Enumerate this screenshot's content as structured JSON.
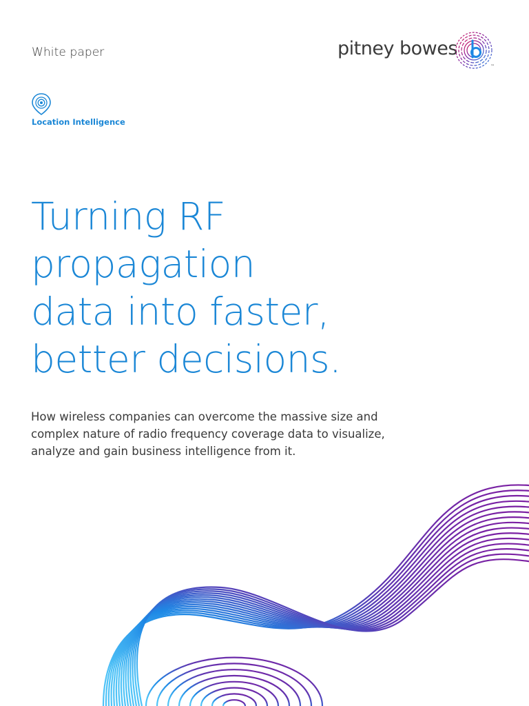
{
  "header": {
    "doc_type": "White paper",
    "brand": {
      "name": "pitney bowes",
      "tm": "™",
      "logo_icon": "pitney-bowes-logo-icon"
    }
  },
  "category": {
    "icon": "location-pin-icon",
    "label": "Location Intelligence"
  },
  "title_lines": [
    "Turning RF",
    "propagation",
    "data into faster,",
    "better decisions."
  ],
  "intro_lines": [
    "How wireless companies can overcome the massive size and",
    "complex nature of radio frequency coverage data to visualize,",
    "analyze and gain business intelligence from it."
  ],
  "decoration": {
    "icon": "wave-lines-graphic"
  },
  "colors": {
    "accent_blue": "#1b87d6",
    "text_dark": "#3a3a3a",
    "wave_purple": "#7b1fa2",
    "wave_blue": "#1e88e5",
    "wave_cyan": "#29b6f6"
  }
}
